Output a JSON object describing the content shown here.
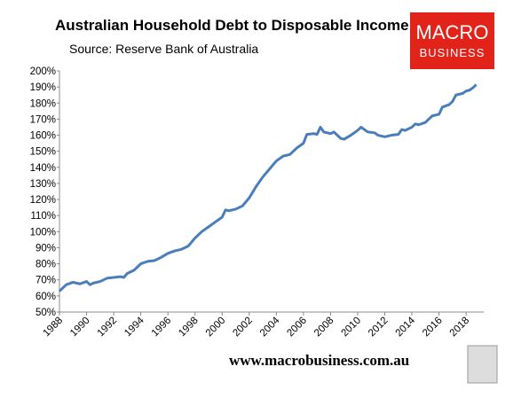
{
  "chart_data": {
    "type": "line",
    "title": "Australian Household Debt to Disposable Income",
    "subtitle": "Source: Reserve Bank of Australia",
    "logo": [
      "MACRO",
      "BUSINESS"
    ],
    "footer": "www.macrobusiness.com.au",
    "x": [
      1988.0,
      1988.5,
      1989.0,
      1989.5,
      1990.0,
      1990.25,
      1990.5,
      1991.0,
      1991.5,
      1992.0,
      1992.5,
      1992.75,
      1993.0,
      1993.5,
      1994.0,
      1994.5,
      1995.0,
      1995.5,
      1996.0,
      1996.5,
      1997.0,
      1997.5,
      1998.0,
      1998.5,
      1999.0,
      1999.5,
      2000.0,
      2000.25,
      2000.5,
      2001.0,
      2001.5,
      2002.0,
      2002.5,
      2003.0,
      2003.5,
      2004.0,
      2004.5,
      2005.0,
      2005.5,
      2006.0,
      2006.25,
      2006.75,
      2007.0,
      2007.25,
      2007.5,
      2008.0,
      2008.25,
      2008.75,
      2009.0,
      2009.5,
      2010.0,
      2010.25,
      2010.75,
      2011.25,
      2011.5,
      2012.0,
      2012.5,
      2013.0,
      2013.25,
      2013.5,
      2014.0,
      2014.25,
      2014.5,
      2015.0,
      2015.5,
      2016.0,
      2016.25,
      2016.75,
      2017.0,
      2017.25,
      2017.75,
      2018.0,
      2018.25,
      2018.5,
      2018.75
    ],
    "series": [
      {
        "name": "Household debt to disposable income",
        "color": "#4a7ebb",
        "values": [
          63,
          67,
          68.5,
          67.5,
          69,
          67,
          68,
          69,
          71,
          71.5,
          72,
          71.5,
          74,
          76,
          80,
          81.5,
          82,
          84,
          86.5,
          88,
          89,
          91,
          96,
          100,
          103,
          106,
          109,
          113.5,
          113,
          114,
          116,
          121,
          128,
          134,
          139,
          144,
          147,
          148,
          152,
          155,
          160.5,
          161,
          160.5,
          165,
          162,
          161,
          162,
          158,
          157.5,
          160,
          163,
          165,
          162,
          161.5,
          160,
          159,
          160,
          160.5,
          163.5,
          163,
          165,
          167,
          166.5,
          168,
          172,
          173,
          177.5,
          179,
          181,
          185,
          186,
          187.5,
          188,
          189.5,
          191.5
        ]
      }
    ],
    "xlim": [
      1988,
      2019.3
    ],
    "xticks": [
      1988,
      1990,
      1992,
      1994,
      1996,
      1998,
      2000,
      2002,
      2004,
      2006,
      2008,
      2010,
      2012,
      2014,
      2016,
      2018
    ],
    "ylim": [
      50,
      200
    ],
    "yticks": [
      {
        "value": 50,
        "label": "50%"
      },
      {
        "value": 60,
        "label": "60%"
      },
      {
        "value": 70,
        "label": "70%"
      },
      {
        "value": 80,
        "label": "80%"
      },
      {
        "value": 90,
        "label": "90%"
      },
      {
        "value": 100,
        "label": "100%"
      },
      {
        "value": 110,
        "label": "110%"
      },
      {
        "value": 120,
        "label": "120%"
      },
      {
        "value": 130,
        "label": "130%"
      },
      {
        "value": 140,
        "label": "140%"
      },
      {
        "value": 150,
        "label": "150%"
      },
      {
        "value": 160,
        "label": "160%"
      },
      {
        "value": 170,
        "label": "170%"
      },
      {
        "value": 180,
        "label": "180%"
      },
      {
        "value": 190,
        "label": "190%"
      },
      {
        "value": 200,
        "label": "200%"
      }
    ]
  }
}
